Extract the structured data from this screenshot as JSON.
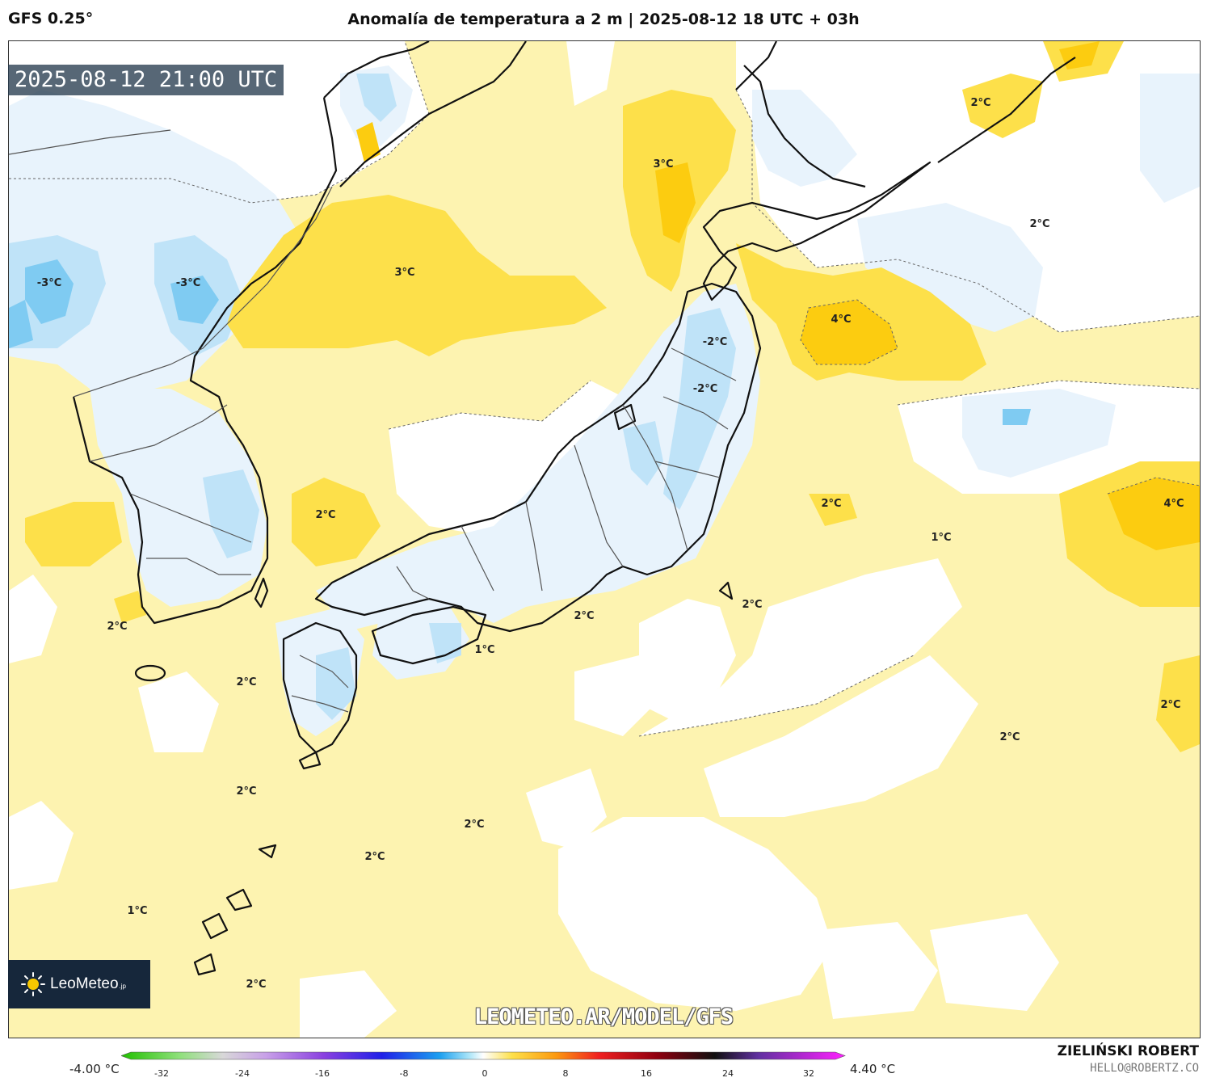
{
  "header": {
    "model": "GFS 0.25°",
    "title": "Anomalía de temperatura a 2 m | 2025-08-12 18 UTC + 03h"
  },
  "map": {
    "valid_time": "2025-08-12 21:00 UTC",
    "region": "Japan / Korea / NW Pacific",
    "labels": [
      {
        "text": "-3°C"
      },
      {
        "text": "-3°C"
      },
      {
        "text": "3°C"
      },
      {
        "text": "3°C"
      },
      {
        "text": "2°C"
      },
      {
        "text": "4°C"
      },
      {
        "text": "-2°C"
      },
      {
        "text": "-2°C"
      },
      {
        "text": "2°C"
      },
      {
        "text": "2°C"
      },
      {
        "text": "1°C"
      },
      {
        "text": "4°C"
      },
      {
        "text": "2°C"
      },
      {
        "text": "2°C"
      },
      {
        "text": "2°C"
      },
      {
        "text": "2°C"
      },
      {
        "text": "1°C"
      },
      {
        "text": "2°C"
      },
      {
        "text": "2°C"
      },
      {
        "text": "2°C"
      },
      {
        "text": "2°C"
      },
      {
        "text": "2°C"
      },
      {
        "text": "2°C"
      },
      {
        "text": "1°C"
      },
      {
        "text": "2°C"
      }
    ],
    "colors": {
      "land_outline": "#111111",
      "border": "#555555",
      "warm_light": "#fdf3b0",
      "warm_mid": "#fde04a",
      "warm_strong": "#fccc10",
      "cool_light": "#e8f3fc",
      "cool_mid": "#bfe3f8",
      "cool_strong": "#7fcbf2"
    }
  },
  "colorbar": {
    "min_label": "-4.00 °C",
    "max_label": "4.40 °C",
    "ticks": [
      "-32",
      "-24",
      "-16",
      "-8",
      "0",
      "8",
      "16",
      "24",
      "32"
    ]
  },
  "branding": {
    "logo_name": "LeoMeteo",
    "logo_suffix": ".jp",
    "watermark": "LEOMETEO.AR/MODEL/GFS",
    "author": "ZIELIŃSKI ROBERT",
    "email": "HELLO@ROBERTZ.CO"
  }
}
